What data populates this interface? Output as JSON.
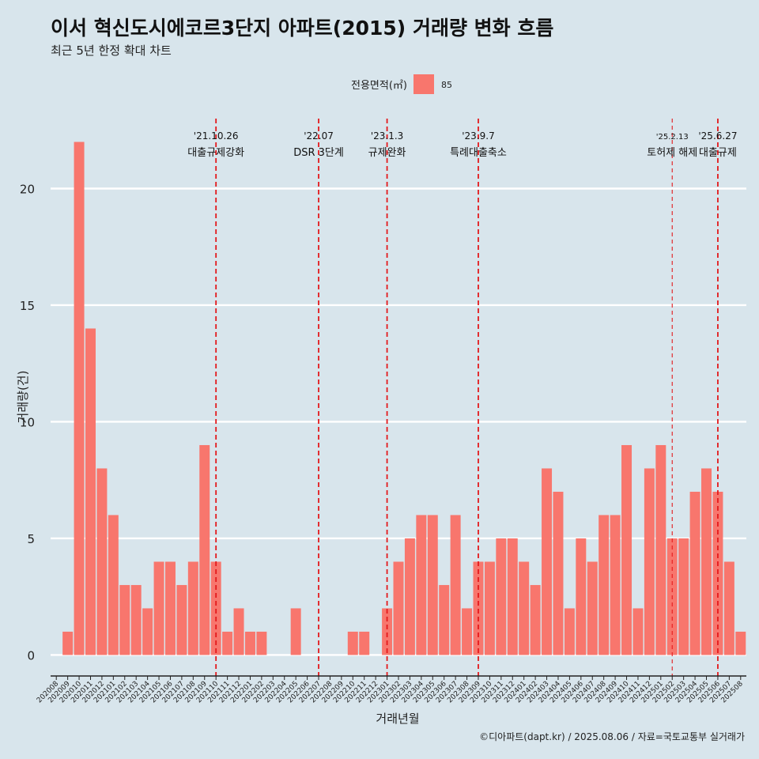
{
  "chart_data": {
    "type": "bar",
    "title": "이서 혁신도시에코르3단지 아파트(2015) 거래량 변화 흐름",
    "subtitle": "최근 5년 한정 확대 차트",
    "xlabel": "거래년월",
    "ylabel": "거래량(건)",
    "caption": "©디아파트(dapt.kr) / 2025.08.06 / 자료=국토교통부 실거래가",
    "legend": {
      "title": "전용면적(㎡)",
      "position": "top",
      "entries": [
        {
          "label": "85",
          "color": "#f8766d"
        }
      ]
    },
    "ylim": [
      -0.9,
      23.0
    ],
    "yticks": [
      0,
      5,
      10,
      15,
      20
    ],
    "grid": true,
    "categories": [
      "202008",
      "202009",
      "202010",
      "202011",
      "202012",
      "202101",
      "202102",
      "202103",
      "202104",
      "202105",
      "202106",
      "202107",
      "202108",
      "202109",
      "202110",
      "202111",
      "202112",
      "202201",
      "202202",
      "202203",
      "202204",
      "202205",
      "202206",
      "202207",
      "202208",
      "202209",
      "202210",
      "202211",
      "202212",
      "202301",
      "202302",
      "202303",
      "202304",
      "202305",
      "202306",
      "202307",
      "202308",
      "202309",
      "202310",
      "202311",
      "202312",
      "202401",
      "202402",
      "202403",
      "202404",
      "202405",
      "202406",
      "202407",
      "202408",
      "202409",
      "202410",
      "202411",
      "202412",
      "202501",
      "202502",
      "202503",
      "202504",
      "202505",
      "202506",
      "202507",
      "202508"
    ],
    "series": [
      {
        "name": "85",
        "color": "#f8766d",
        "values": [
          0,
          1,
          22,
          14,
          8,
          6,
          3,
          3,
          2,
          4,
          4,
          3,
          4,
          9,
          4,
          1,
          2,
          1,
          1,
          0,
          0,
          2,
          0,
          0,
          0,
          0,
          1,
          1,
          0,
          2,
          4,
          5,
          6,
          6,
          3,
          6,
          2,
          4,
          4,
          5,
          5,
          4,
          3,
          8,
          7,
          2,
          5,
          4,
          6,
          6,
          9,
          2,
          8,
          9,
          5,
          5,
          7,
          8,
          7,
          4,
          1
        ]
      }
    ],
    "annotations": [
      {
        "x": "202110",
        "offset": 0.0,
        "date": "'21.10.26",
        "label": "대출규제강화",
        "style": "thick"
      },
      {
        "x": "202207",
        "offset": 0.0,
        "date": "'22.07",
        "label": "DSR 3단계",
        "style": "thick"
      },
      {
        "x": "202301",
        "offset": 0.0,
        "date": "'23.1.3",
        "label": "규제완화",
        "style": "thick"
      },
      {
        "x": "202309",
        "offset": 0.0,
        "date": "'23.9.7",
        "label": "특례대출축소",
        "style": "thick"
      },
      {
        "x": "202502",
        "offset": 0.0,
        "date": "'25.2.13",
        "label": "토허제 해제",
        "style": "thin"
      },
      {
        "x": "202506",
        "offset": 0.0,
        "date": "'25.6.27",
        "label": "대출규제",
        "style": "thick"
      }
    ]
  }
}
